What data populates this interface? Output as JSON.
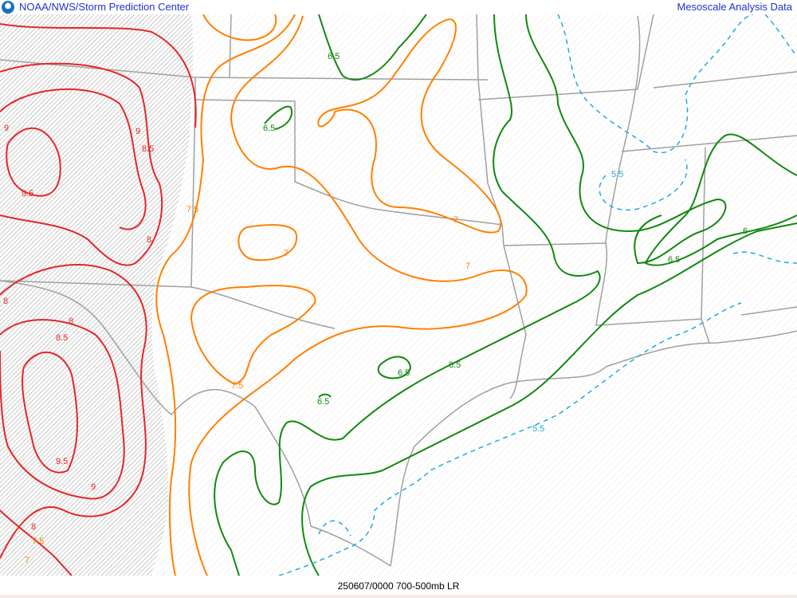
{
  "header": {
    "left_title": "NOAA/NWS/Storm Prediction Center",
    "right_title": "Mesoscale Analysis Data",
    "logo": "noaa-logo"
  },
  "footer": {
    "caption": "250607/0000 700-500mb LR"
  },
  "colors": {
    "red": "#e3262a",
    "orange": "#ff8000",
    "green": "#118811",
    "blue": "#22aadd",
    "borders": "#a0a0a0",
    "title": "#1f33cc"
  },
  "contour_labels": {
    "red": [
      "9",
      "9",
      "8.5",
      "9.5",
      "8",
      "8",
      "8",
      "8.5",
      "9.5",
      "9",
      "8",
      "7.5",
      "7"
    ],
    "orange": [
      "7.5",
      "7",
      "7",
      "7",
      "7.5"
    ],
    "green": [
      "6.5",
      "6.5",
      "6.5",
      "6.5",
      "6.5",
      "6.5",
      "6"
    ],
    "blue": [
      "5.5",
      "5.5"
    ]
  }
}
